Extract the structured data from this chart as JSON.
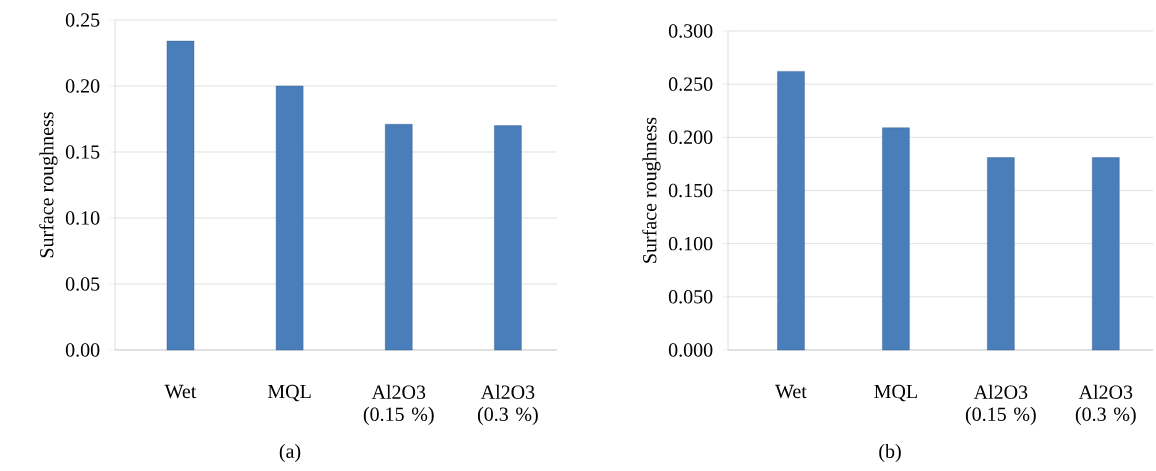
{
  "chart_data": [
    {
      "type": "bar",
      "categories": [
        "Wet",
        "MQL",
        "Al2O3 (0.15 %)",
        "Al2O3 (0.3 %)"
      ],
      "values": [
        0.234,
        0.2,
        0.171,
        0.17
      ],
      "color": "#4a7ebb",
      "ylabel": "Surface roughness",
      "ylim": [
        0,
        0.25
      ],
      "yticks": [
        {
          "value": 0,
          "label": "0.00"
        },
        {
          "value": 0.05,
          "label": "0.05"
        },
        {
          "value": 0.1,
          "label": "0.10"
        },
        {
          "value": 0.15,
          "label": "0.15"
        },
        {
          "value": 0.2,
          "label": "0.20"
        },
        {
          "value": 0.25,
          "label": "0.25"
        }
      ],
      "grid": "y",
      "annotations": [
        "(a)"
      ]
    },
    {
      "type": "bar",
      "categories": [
        "Wet",
        "MQL",
        "Al2O3 (0.15 %)",
        "Al2O3 (0.3 %)"
      ],
      "values": [
        0.262,
        0.209,
        0.181,
        0.181
      ],
      "color": "#4a7ebb",
      "ylabel": "Surface roughness",
      "ylim": [
        0,
        0.3
      ],
      "yticks": [
        {
          "value": 0,
          "label": "0.000"
        },
        {
          "value": 0.05,
          "label": "0.050"
        },
        {
          "value": 0.1,
          "label": "0.100"
        },
        {
          "value": 0.15,
          "label": "0.150"
        },
        {
          "value": 0.2,
          "label": "0.200"
        },
        {
          "value": 0.25,
          "label": "0.250"
        },
        {
          "value": 0.3,
          "label": "0.300"
        }
      ],
      "grid": "y",
      "annotations": [
        "(b)"
      ]
    }
  ]
}
